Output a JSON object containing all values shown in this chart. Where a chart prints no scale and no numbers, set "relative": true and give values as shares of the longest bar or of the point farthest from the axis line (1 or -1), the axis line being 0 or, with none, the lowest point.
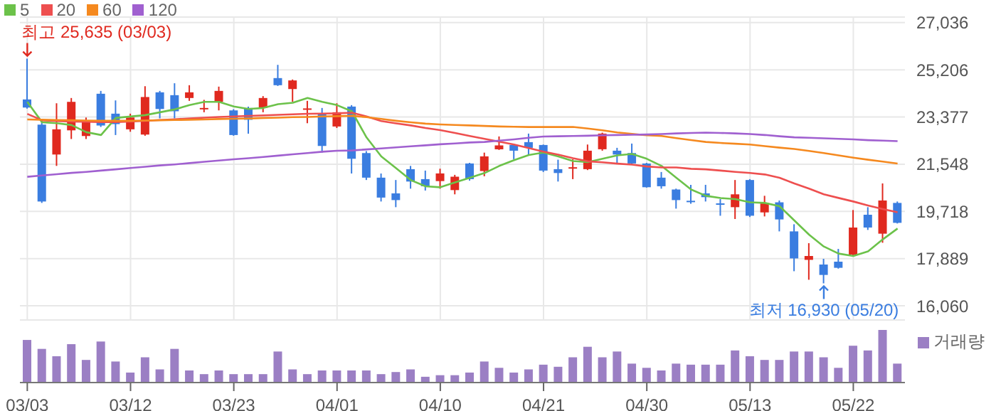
{
  "chart_data": [
    {
      "type": "candlestick",
      "categories": [
        "03/03",
        null,
        null,
        null,
        null,
        null,
        null,
        "03/12",
        null,
        null,
        null,
        null,
        null,
        null,
        "03/23",
        null,
        null,
        null,
        null,
        null,
        null,
        "04/01",
        null,
        null,
        null,
        null,
        null,
        null,
        "04/10",
        null,
        null,
        null,
        null,
        null,
        null,
        "04/21",
        null,
        null,
        null,
        null,
        null,
        null,
        "04/30",
        null,
        null,
        null,
        null,
        null,
        null,
        "05/13",
        null,
        null,
        null,
        null,
        null,
        null,
        "05/22",
        null,
        null,
        null
      ],
      "ohlc": [
        [
          24057,
          25635,
          23700,
          23743
        ],
        [
          23081,
          23230,
          20047,
          20102
        ],
        [
          21923,
          23909,
          21482,
          22899
        ],
        [
          22860,
          24113,
          22524,
          23964
        ],
        [
          22640,
          23357,
          22524,
          23230
        ],
        [
          24278,
          24388,
          22992,
          23047
        ],
        [
          23506,
          24020,
          22678,
          23102
        ],
        [
          22899,
          23506,
          22805,
          23357
        ],
        [
          22696,
          24570,
          22650,
          24151
        ],
        [
          24333,
          24388,
          23324,
          23688
        ],
        [
          24223,
          24685,
          23324,
          23599
        ],
        [
          24113,
          24609,
          24002,
          24333
        ],
        [
          23710,
          24041,
          23561,
          23727
        ],
        [
          23964,
          24554,
          23633,
          24388
        ],
        [
          23633,
          23680,
          22650,
          22678
        ],
        [
          23727,
          23781,
          22733,
          23269
        ],
        [
          23727,
          24186,
          23561,
          24113
        ],
        [
          24885,
          25398,
          24580,
          24609
        ],
        [
          24460,
          24830,
          23964,
          24794
        ],
        [
          23690,
          24002,
          23136,
          23710
        ],
        [
          23506,
          23727,
          21996,
          22255
        ],
        [
          23009,
          23909,
          22950,
          23561
        ],
        [
          23781,
          23837,
          21187,
          21758
        ],
        [
          21979,
          22054,
          20935,
          21026
        ],
        [
          21026,
          21187,
          20102,
          20254
        ],
        [
          20417,
          20935,
          19882,
          20157
        ],
        [
          21355,
          21482,
          20599,
          20876
        ],
        [
          20969,
          21300,
          20527,
          20693
        ],
        [
          20893,
          21372,
          20599,
          21190
        ],
        [
          20544,
          21135,
          20380,
          21063
        ],
        [
          21576,
          21600,
          20913,
          20969
        ],
        [
          21282,
          21996,
          21080,
          21851
        ],
        [
          22125,
          22623,
          22100,
          22276
        ],
        [
          22292,
          22310,
          21740,
          22071
        ],
        [
          22403,
          22733,
          21890,
          22182
        ],
        [
          22292,
          22310,
          21245,
          21300
        ],
        [
          21355,
          21722,
          20876,
          21206
        ],
        [
          21410,
          21740,
          20969,
          21430
        ],
        [
          21355,
          22310,
          21320,
          22071
        ],
        [
          22127,
          22770,
          22071,
          22733
        ],
        [
          22071,
          22182,
          21576,
          21923
        ],
        [
          21979,
          22347,
          21520,
          21576
        ],
        [
          21576,
          21600,
          20640,
          20655
        ],
        [
          21026,
          21245,
          20599,
          20693
        ],
        [
          20567,
          20600,
          19826,
          20157
        ],
        [
          20130,
          20748,
          20014,
          20080
        ],
        [
          20417,
          20748,
          20102,
          20270
        ],
        [
          20030,
          20196,
          19550,
          20000
        ],
        [
          19882,
          20935,
          19424,
          20380
        ],
        [
          20935,
          20969,
          19500,
          19550
        ],
        [
          19680,
          20323,
          19524,
          20050
        ],
        [
          20070,
          20141,
          18944,
          19407
        ],
        [
          18944,
          19220,
          17400,
          17896
        ],
        [
          17840,
          18486,
          17069,
          17990
        ],
        [
          17659,
          17880,
          16930,
          17256
        ],
        [
          17770,
          18265,
          17500,
          17532
        ],
        [
          18045,
          19771,
          18000,
          19093
        ],
        [
          19589,
          19882,
          19000,
          19093
        ],
        [
          18855,
          20803,
          18503,
          20141
        ],
        [
          20047,
          20102,
          19250,
          19275
        ]
      ],
      "colors": [
        "#3a7de0",
        "#3a7de0",
        "#e0291f",
        "#e0291f",
        "#e0291f",
        "#3a7de0",
        "#3a7de0",
        "#e0291f",
        "#e0291f",
        "#3a7de0",
        "#3a7de0",
        "#e0291f",
        "#e0291f",
        "#e0291f",
        "#3a7de0",
        "#3a7de0",
        "#e0291f",
        "#3a7de0",
        "#e0291f",
        "#e0291f",
        "#3a7de0",
        "#e0291f",
        "#3a7de0",
        "#3a7de0",
        "#3a7de0",
        "#3a7de0",
        "#3a7de0",
        "#3a7de0",
        "#e0291f",
        "#e0291f",
        "#3a7de0",
        "#e0291f",
        "#e0291f",
        "#3a7de0",
        "#3a7de0",
        "#3a7de0",
        "#3a7de0",
        "#e0291f",
        "#e0291f",
        "#e0291f",
        "#3a7de0",
        "#3a7de0",
        "#3a7de0",
        "#3a7de0",
        "#3a7de0",
        "#3a7de0",
        "#3a7de0",
        "#3a7de0",
        "#e0291f",
        "#3a7de0",
        "#e0291f",
        "#3a7de0",
        "#3a7de0",
        "#e0291f",
        "#3a7de0",
        "#3a7de0",
        "#e0291f",
        "#3a7de0",
        "#e0291f",
        "#3a7de0"
      ],
      "series": [
        {
          "name": "5",
          "type": "line",
          "color": "#6cc24a",
          "values": [
            23964,
            23175,
            23136,
            23064,
            22789,
            22678,
            23340,
            23395,
            23450,
            23561,
            23671,
            23837,
            23964,
            23964,
            23782,
            23689,
            23727,
            23875,
            23930,
            24113,
            23964,
            23837,
            23600,
            22585,
            21850,
            21393,
            20930,
            20693,
            20654,
            20841,
            21024,
            21206,
            21482,
            21702,
            21906,
            22000,
            21850,
            21669,
            21630,
            21757,
            21890,
            21945,
            21757,
            21482,
            21024,
            20566,
            20323,
            20235,
            20196,
            20070,
            20047,
            19920,
            19369,
            18817,
            18358,
            18083,
            17990,
            18172,
            18635,
            19054
          ]
        },
        {
          "name": "20",
          "type": "line",
          "color": "#ee4f4f",
          "values": [
            23500,
            23250,
            23220,
            23200,
            23190,
            23180,
            23180,
            23200,
            23230,
            23260,
            23290,
            23320,
            23350,
            23380,
            23400,
            23420,
            23440,
            23460,
            23480,
            23500,
            23510,
            23520,
            23544,
            23400,
            23220,
            23130,
            23050,
            22950,
            22870,
            22760,
            22640,
            22530,
            22420,
            22310,
            22170,
            22035,
            21920,
            21780,
            21660,
            21620,
            21570,
            21530,
            21460,
            21420,
            21420,
            21370,
            21350,
            21300,
            21250,
            21206,
            21150,
            21024,
            20800,
            20600,
            20380,
            20240,
            20102,
            19950,
            19810,
            19683
          ]
        },
        {
          "name": "60",
          "type": "line",
          "color": "#f5891f",
          "values": [
            23280,
            23270,
            23260,
            23250,
            23240,
            23230,
            23230,
            23230,
            23240,
            23250,
            23260,
            23270,
            23280,
            23300,
            23310,
            23320,
            23340,
            23350,
            23370,
            23380,
            23400,
            23410,
            23423,
            23370,
            23300,
            23230,
            23170,
            23120,
            23090,
            23070,
            23050,
            23030,
            23010,
            23000,
            22990,
            22990,
            22990,
            22990,
            22930,
            22860,
            22780,
            22720,
            22670,
            22640,
            22560,
            22480,
            22410,
            22370,
            22340,
            22310,
            22250,
            22190,
            22140,
            22060,
            21980,
            21890,
            21800,
            21720,
            21650,
            21575
          ]
        },
        {
          "name": "120",
          "type": "line",
          "color": "#a060d0",
          "values": [
            21060,
            21110,
            21160,
            21210,
            21250,
            21300,
            21350,
            21400,
            21450,
            21500,
            21540,
            21590,
            21640,
            21690,
            21740,
            21780,
            21830,
            21880,
            21930,
            21980,
            22030,
            22070,
            22080,
            22120,
            22160,
            22200,
            22240,
            22280,
            22320,
            22350,
            22390,
            22410,
            22460,
            22510,
            22570,
            22620,
            22630,
            22640,
            22650,
            22670,
            22680,
            22690,
            22700,
            22717,
            22740,
            22760,
            22772,
            22760,
            22740,
            22717,
            22680,
            22630,
            22590,
            22570,
            22550,
            22530,
            22510,
            22480,
            22460,
            22441
          ]
        }
      ],
      "ylim": [
        15510,
        27250
      ],
      "yticks": [
        {
          "value": 16060,
          "label": "16,060"
        },
        {
          "value": 17889,
          "label": "17,889"
        },
        {
          "value": 19718,
          "label": "19,718"
        },
        {
          "value": 21548,
          "label": "21,548"
        },
        {
          "value": 23377,
          "label": "23,377"
        },
        {
          "value": 25206,
          "label": "25,206"
        },
        {
          "value": 27036,
          "label": "27,036"
        }
      ],
      "grid": true,
      "legend": "top left",
      "tick_labels": "y",
      "marker": "none",
      "line_style": "solid",
      "annotations": [
        {
          "text": "최고 25,635 (03/03)",
          "x": "03/03",
          "y": 25635
        },
        {
          "text": "최저 16,930 (05/20)",
          "y": 16930
        }
      ]
    },
    {
      "type": "bar",
      "categories": [
        "03/03",
        null,
        null,
        null,
        null,
        null,
        null,
        "03/12",
        null,
        null,
        null,
        null,
        null,
        null,
        "03/23",
        null,
        null,
        null,
        null,
        null,
        null,
        "04/01",
        null,
        null,
        null,
        null,
        null,
        null,
        "04/10",
        null,
        null,
        null,
        null,
        null,
        null,
        "04/21",
        null,
        null,
        null,
        null,
        null,
        null,
        "04/30",
        null,
        null,
        null,
        null,
        null,
        null,
        "05/13",
        null,
        null,
        null,
        null,
        null,
        null,
        "05/22",
        null,
        null,
        null
      ],
      "series": [
        {
          "name": "거래량",
          "color": "#9b7fc4",
          "values": [
            0.81,
            0.64,
            0.5,
            0.73,
            0.43,
            0.78,
            0.4,
            0.19,
            0.48,
            0.25,
            0.64,
            0.23,
            0.16,
            0.23,
            0.16,
            0.16,
            0.16,
            0.59,
            0.25,
            0.16,
            0.23,
            0.23,
            0.23,
            0.23,
            0.16,
            0.2,
            0.25,
            0.11,
            0.14,
            0.14,
            0.19,
            0.4,
            0.28,
            0.19,
            0.25,
            0.34,
            0.3,
            0.48,
            0.68,
            0.48,
            0.59,
            0.36,
            0.28,
            0.23,
            0.36,
            0.34,
            0.34,
            0.34,
            0.61,
            0.5,
            0.43,
            0.43,
            0.59,
            0.59,
            0.48,
            0.28,
            0.7,
            0.61,
            1,
            0.36
          ]
        }
      ],
      "relative": true,
      "legend": "top right",
      "tick_labels": "x"
    }
  ]
}
